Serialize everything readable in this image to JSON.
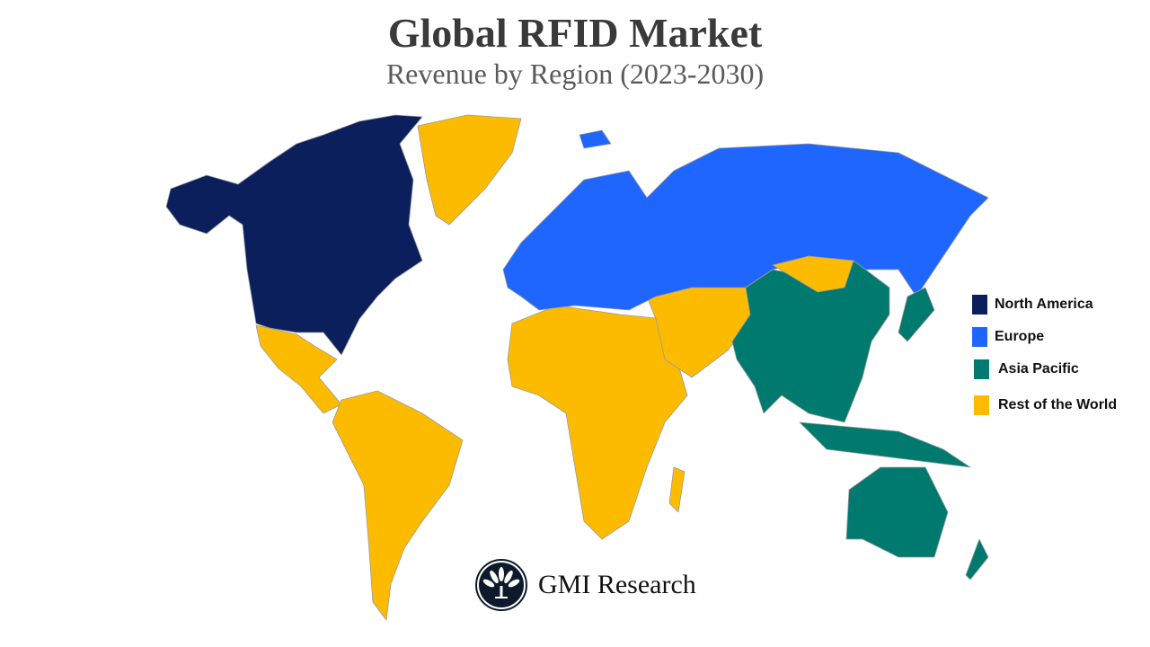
{
  "title": "Global RFID Market",
  "subtitle": "Revenue by Region (2023-2030)",
  "legend": [
    {
      "label": "North America",
      "color": "#0b1f5c"
    },
    {
      "label": "Europe",
      "color": "#1f66ff"
    },
    {
      "label": "Asia Pacific",
      "color": "#007a6e"
    },
    {
      "label": "Rest of the World",
      "color": "#fdbb00"
    }
  ],
  "logo": {
    "text": "GMI Research"
  }
}
